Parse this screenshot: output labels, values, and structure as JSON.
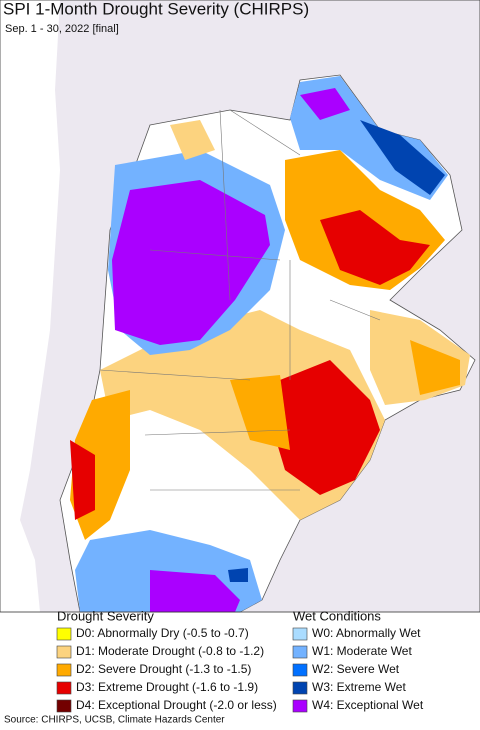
{
  "header": {
    "title": "SPI 1-Month Drought Severity (CHIRPS)",
    "subtitle": "Sep. 1 - 30, 2022 [final]"
  },
  "legend": {
    "drought": {
      "title": "Drought Severity",
      "items": [
        {
          "label": "D0: Abnormally Dry (-0.5 to -0.7)",
          "color": "#ffff00"
        },
        {
          "label": "D1: Moderate Drought (-0.8 to -1.2)",
          "color": "#fcd37f"
        },
        {
          "label": "D2: Severe Drought (-1.3 to -1.5)",
          "color": "#ffaa00"
        },
        {
          "label": "D3: Extreme Drought (-1.6 to -1.9)",
          "color": "#e60000"
        },
        {
          "label": "D4: Exceptional Drought (-2.0 or less)",
          "color": "#730000"
        }
      ]
    },
    "wet": {
      "title": "Wet Conditions",
      "items": [
        {
          "label": "W0: Abnormally Wet",
          "color": "#aadcff"
        },
        {
          "label": "W1: Moderate Wet",
          "color": "#73b2ff"
        },
        {
          "label": "W2: Severe Wet",
          "color": "#0070ff"
        },
        {
          "label": "W3: Extreme Wet",
          "color": "#0044b0"
        },
        {
          "label": "W4: Exceptional Wet",
          "color": "#aa00ff"
        }
      ]
    }
  },
  "source": "Source: CHIRPS, UCSB, Climate Hazards Center"
}
